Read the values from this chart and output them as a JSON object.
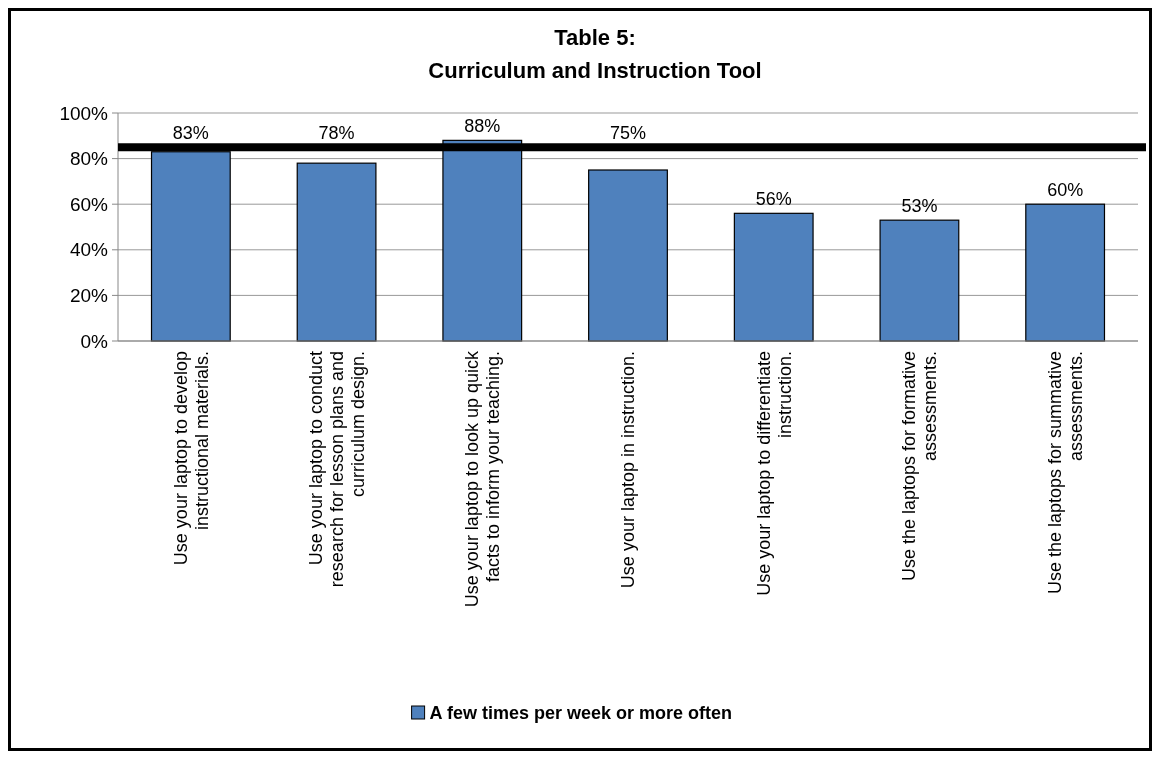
{
  "chart_data": {
    "type": "bar",
    "title": "Table 5:",
    "subtitle": "Curriculum and Instruction Tool",
    "categories": [
      "Use your laptop to develop instructional materials.",
      "Use your laptop to conduct research for lesson plans and curriculum design.",
      "Use your laptop to look up quick facts to inform your teaching.",
      "Use your laptop in instruction.",
      "Use your laptop to differentiate instruction.",
      "Use the laptops for formative assessments.",
      "Use the laptops for summative assessments."
    ],
    "series": [
      {
        "name": "A few times per week or more often",
        "color": "#4f81bd",
        "values": [
          83,
          78,
          88,
          75,
          56,
          53,
          60
        ],
        "value_labels": [
          "83%",
          "78%",
          "88%",
          "75%",
          "56%",
          "53%",
          "60%"
        ]
      }
    ],
    "ylim": [
      0,
      100
    ],
    "yticks": [
      {
        "value": 0,
        "label": "0%"
      },
      {
        "value": 20,
        "label": "20%"
      },
      {
        "value": 40,
        "label": "40%"
      },
      {
        "value": 60,
        "label": "60%"
      },
      {
        "value": 80,
        "label": "80%"
      },
      {
        "value": 100,
        "label": "100%"
      }
    ],
    "ref_lines": [
      {
        "axis": "y",
        "value": 85,
        "color": "#000000"
      }
    ],
    "grid": "y",
    "legend": "bottom"
  }
}
